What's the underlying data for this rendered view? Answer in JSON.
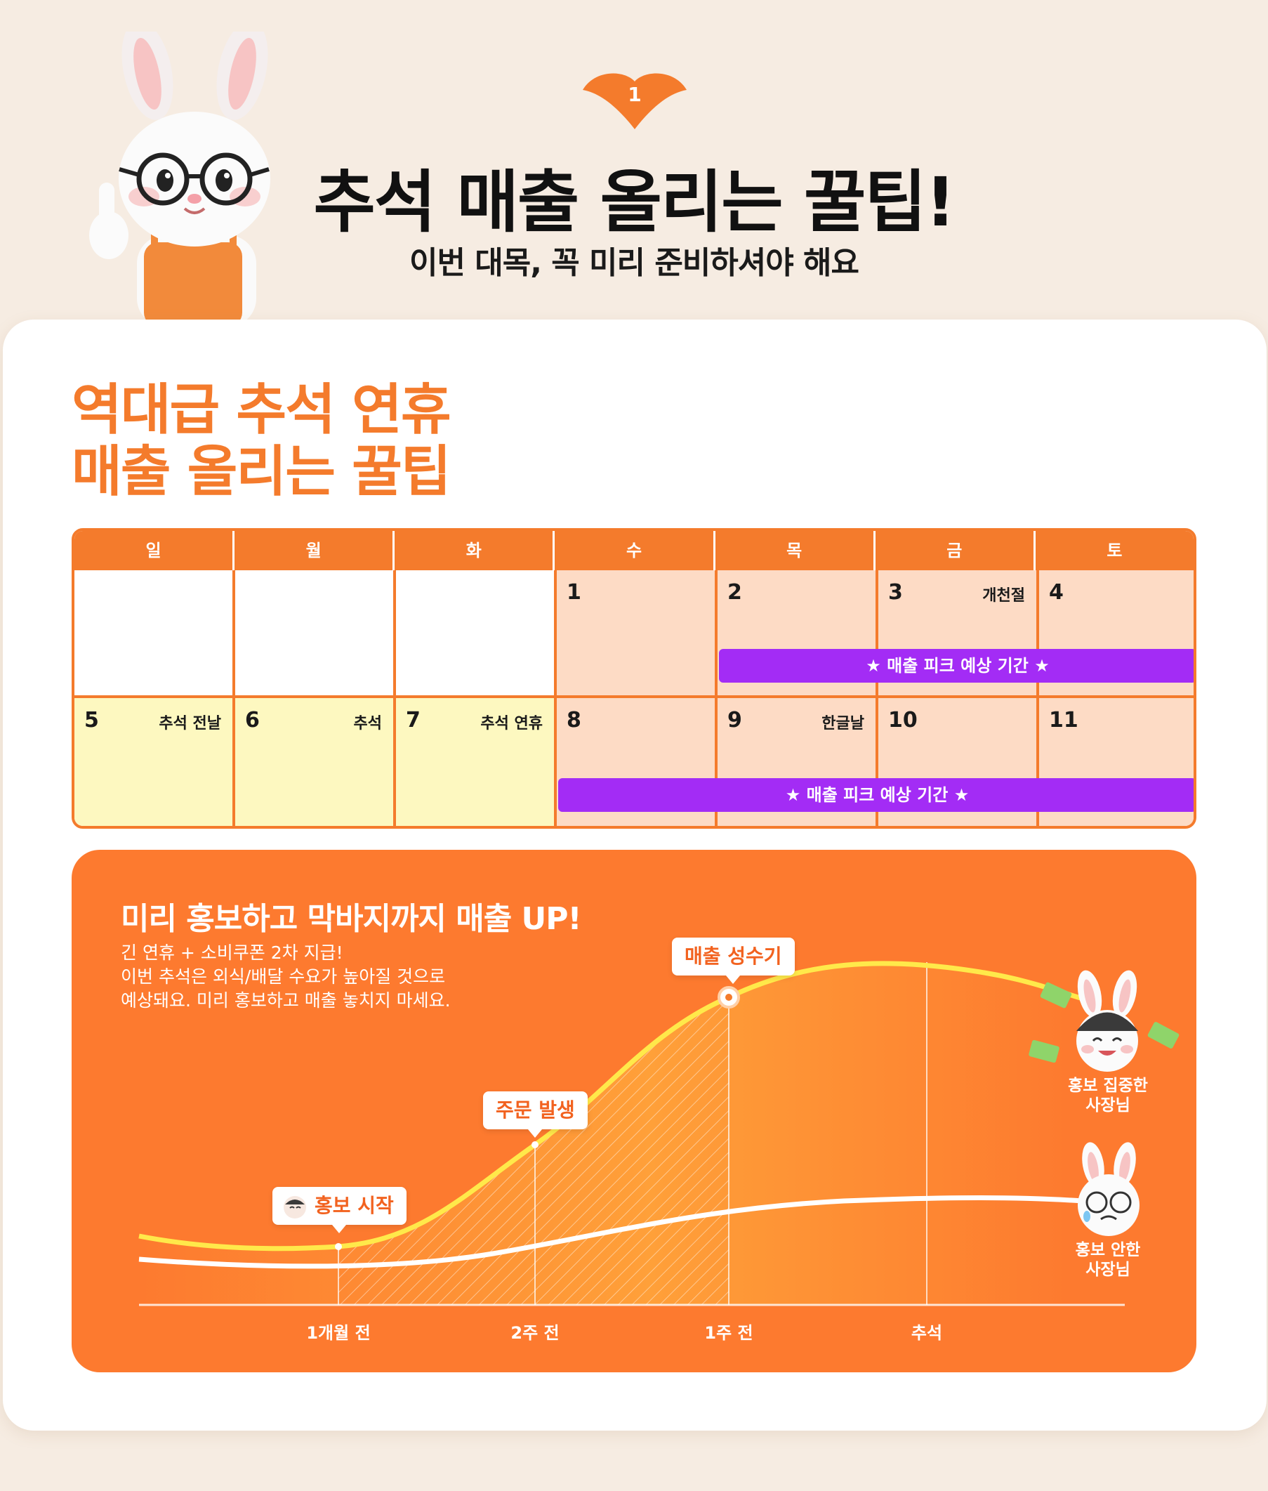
{
  "header": {
    "badge_number": "1",
    "title": "추석 매출 올리는 꿀팁!",
    "subtitle": "이번 대목, 꼭 미리 준비하셔야 해요"
  },
  "card": {
    "heading_line1": "역대급 추석 연휴",
    "heading_line2": "매출 올리는 꿀팁"
  },
  "calendar": {
    "weekdays": [
      "일",
      "월",
      "화",
      "수",
      "목",
      "금",
      "토"
    ],
    "week1": [
      {
        "num": "",
        "label": ""
      },
      {
        "num": "",
        "label": ""
      },
      {
        "num": "",
        "label": ""
      },
      {
        "num": "1",
        "label": ""
      },
      {
        "num": "2",
        "label": ""
      },
      {
        "num": "3",
        "label": "개천절"
      },
      {
        "num": "4",
        "label": ""
      }
    ],
    "week2": [
      {
        "num": "5",
        "label": "추석 전날"
      },
      {
        "num": "6",
        "label": "추석"
      },
      {
        "num": "7",
        "label": "추석 연휴"
      },
      {
        "num": "8",
        "label": ""
      },
      {
        "num": "9",
        "label": "한글날"
      },
      {
        "num": "10",
        "label": ""
      },
      {
        "num": "11",
        "label": ""
      }
    ],
    "peak_label": "★ 매출 피크 예상 기간 ★",
    "colors": {
      "accent": "#f47b2c",
      "peach": "#fddbc5",
      "yellow": "#fdf8c0",
      "peak": "#a32cf5"
    }
  },
  "panel": {
    "title": "미리 홍보하고 막바지까지 매출 UP!",
    "desc": [
      "긴 연휴 + 소비쿠폰 2차 지급!",
      "이번 추석은 외식/배달 수요가 높아질 것으로",
      "예상돼요. 미리 홍보하고 매출 놓치지 마세요."
    ],
    "callouts": {
      "start": "홍보 시작",
      "order": "주문 발생",
      "peak": "매출 성수기"
    },
    "x_ticks": [
      "1개월 전",
      "2주 전",
      "1주 전",
      "추석"
    ],
    "promo_owner": [
      "홍보 집중한",
      "사장님"
    ],
    "no_promo_owner": [
      "홍보 안한",
      "사장님"
    ]
  }
}
